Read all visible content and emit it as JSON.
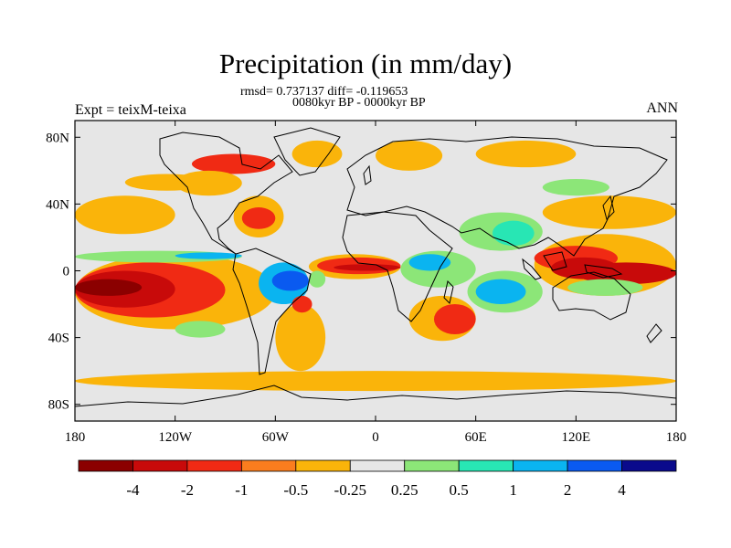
{
  "title": "Precipitation (in mm/day)",
  "stats_line": "rmsd= 0.737137 diff= -0.119653",
  "period_line": "0080kyr BP - 0000kyr BP",
  "experiment_label": "Expt = teixM-teixa",
  "season_label": "ANN",
  "map": {
    "projection": "cylindrical-equidistant",
    "lon_range": [
      -180,
      180
    ],
    "lat_range": [
      -90,
      90
    ],
    "lat_ticks": [
      {
        "value": 80,
        "label": "80N"
      },
      {
        "value": 40,
        "label": "40N"
      },
      {
        "value": 0,
        "label": "0"
      },
      {
        "value": -40,
        "label": "40S"
      },
      {
        "value": -80,
        "label": "80S"
      }
    ],
    "lon_ticks": [
      {
        "value": -180,
        "label": "180"
      },
      {
        "value": -120,
        "label": "120W"
      },
      {
        "value": -60,
        "label": "60W"
      },
      {
        "value": 0,
        "label": "0"
      },
      {
        "value": 60,
        "label": "60E"
      },
      {
        "value": 120,
        "label": "120E"
      },
      {
        "value": 180,
        "label": "180"
      }
    ],
    "background_color": "#e6e6e6",
    "coastline_color": "#000000"
  },
  "colorbar": {
    "labels": [
      "-4",
      "-2",
      "-1",
      "-0.5",
      "-0.25",
      "0.25",
      "0.5",
      "1",
      "2",
      "4"
    ],
    "colors": [
      "#8b0000",
      "#c80a0a",
      "#f02a14",
      "#fa7d1e",
      "#fab40a",
      "#e6e6e6",
      "#8ce678",
      "#28e6b4",
      "#0ab4f0",
      "#0a5af0",
      "#0a0a8c"
    ]
  },
  "anomaly_regions": [
    {
      "lon": [
        -180,
        -140
      ],
      "lat": [
        -15,
        -5
      ],
      "bin": 0
    },
    {
      "lon": [
        -180,
        -120
      ],
      "lat": [
        -22,
        0
      ],
      "bin": 1
    },
    {
      "lon": [
        -180,
        -90
      ],
      "lat": [
        -28,
        5
      ],
      "bin": 2
    },
    {
      "lon": [
        -180,
        -60
      ],
      "lat": [
        -35,
        10
      ],
      "bin": 4
    },
    {
      "lon": [
        -180,
        -80
      ],
      "lat": [
        5,
        12
      ],
      "bin": 6
    },
    {
      "lon": [
        -120,
        -80
      ],
      "lat": [
        7,
        11
      ],
      "bin": 8
    },
    {
      "lon": [
        -180,
        -120
      ],
      "lat": [
        22,
        45
      ],
      "bin": 4
    },
    {
      "lon": [
        -150,
        -100
      ],
      "lat": [
        48,
        58
      ],
      "bin": 4
    },
    {
      "lon": [
        -110,
        -60
      ],
      "lat": [
        58,
        70
      ],
      "bin": 2
    },
    {
      "lon": [
        -120,
        -80
      ],
      "lat": [
        45,
        60
      ],
      "bin": 4
    },
    {
      "lon": [
        -80,
        -60
      ],
      "lat": [
        25,
        38
      ],
      "bin": 2
    },
    {
      "lon": [
        -85,
        -55
      ],
      "lat": [
        20,
        45
      ],
      "bin": 4
    },
    {
      "lon": [
        -50,
        -20
      ],
      "lat": [
        62,
        78
      ],
      "bin": 4
    },
    {
      "lon": [
        -70,
        -40
      ],
      "lat": [
        -20,
        5
      ],
      "bin": 8
    },
    {
      "lon": [
        -62,
        -40
      ],
      "lat": [
        -12,
        0
      ],
      "bin": 9
    },
    {
      "lon": [
        -40,
        -30
      ],
      "lat": [
        -10,
        0
      ],
      "bin": 6
    },
    {
      "lon": [
        -50,
        -38
      ],
      "lat": [
        -25,
        -15
      ],
      "bin": 2
    },
    {
      "lon": [
        -60,
        -30
      ],
      "lat": [
        -60,
        -20
      ],
      "bin": 4
    },
    {
      "lon": [
        -35,
        15
      ],
      "lat": [
        -2,
        8
      ],
      "bin": 2
    },
    {
      "lon": [
        -40,
        15
      ],
      "lat": [
        -5,
        10
      ],
      "bin": 4
    },
    {
      "lon": [
        -25,
        15
      ],
      "lat": [
        0,
        4
      ],
      "bin": 1
    },
    {
      "lon": [
        20,
        45
      ],
      "lat": [
        0,
        10
      ],
      "bin": 8
    },
    {
      "lon": [
        15,
        60
      ],
      "lat": [
        -10,
        12
      ],
      "bin": 6
    },
    {
      "lon": [
        35,
        60
      ],
      "lat": [
        -38,
        -20
      ],
      "bin": 2
    },
    {
      "lon": [
        20,
        60
      ],
      "lat": [
        -42,
        -15
      ],
      "bin": 4
    },
    {
      "lon": [
        60,
        90
      ],
      "lat": [
        -20,
        -5
      ],
      "bin": 8
    },
    {
      "lon": [
        55,
        100
      ],
      "lat": [
        -25,
        0
      ],
      "bin": 6
    },
    {
      "lon": [
        70,
        95
      ],
      "lat": [
        15,
        30
      ],
      "bin": 7
    },
    {
      "lon": [
        50,
        100
      ],
      "lat": [
        12,
        35
      ],
      "bin": 6
    },
    {
      "lon": [
        95,
        145
      ],
      "lat": [
        0,
        15
      ],
      "bin": 2
    },
    {
      "lon": [
        105,
        145
      ],
      "lat": [
        -5,
        8
      ],
      "bin": 1
    },
    {
      "lon": [
        95,
        180
      ],
      "lat": [
        -15,
        22
      ],
      "bin": 4
    },
    {
      "lon": [
        120,
        180
      ],
      "lat": [
        -8,
        5
      ],
      "bin": 1
    },
    {
      "lon": [
        115,
        160
      ],
      "lat": [
        -15,
        -5
      ],
      "bin": 6
    },
    {
      "lon": [
        100,
        180
      ],
      "lat": [
        25,
        45
      ],
      "bin": 4
    },
    {
      "lon": [
        0,
        40
      ],
      "lat": [
        60,
        78
      ],
      "bin": 4
    },
    {
      "lon": [
        60,
        120
      ],
      "lat": [
        62,
        78
      ],
      "bin": 4
    },
    {
      "lon": [
        100,
        140
      ],
      "lat": [
        45,
        55
      ],
      "bin": 6
    },
    {
      "lon": [
        -180,
        180
      ],
      "lat": [
        -72,
        -60
      ],
      "bin": 4
    },
    {
      "lon": [
        -120,
        -90
      ],
      "lat": [
        -40,
        -30
      ],
      "bin": 6
    }
  ]
}
